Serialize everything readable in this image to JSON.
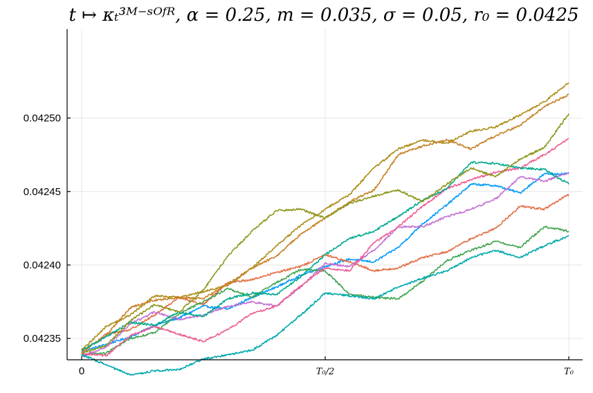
{
  "chart_data": {
    "type": "line",
    "title": "t ↦ κₜ³ᴹ⁻ˢᴼᶠᴿ, α = 0.25, m = 0.035, σ = 0.05, r₀ = 0.0425",
    "xlabel": "",
    "ylabel": "",
    "xlim": [
      0,
      1
    ],
    "ylim": [
      0.04232,
      0.04254
    ],
    "xticks": [
      {
        "value": 0,
        "label": "0"
      },
      {
        "value": 0.5,
        "label": "T₀/2"
      },
      {
        "value": 1,
        "label": "T₀"
      }
    ],
    "yticks": [
      {
        "value": 0.04235,
        "label": "0.04235"
      },
      {
        "value": 0.0424,
        "label": "0.04240"
      },
      {
        "value": 0.04245,
        "label": "0.04245"
      },
      {
        "value": 0.0425,
        "label": "0.04250"
      }
    ],
    "grid": true,
    "legend": "none",
    "series": [
      {
        "color": "#009AFA",
        "x": [
          0,
          0.05,
          0.1,
          0.15,
          0.2,
          0.25,
          0.3,
          0.35,
          0.4,
          0.45,
          0.5,
          0.55,
          0.6,
          0.65,
          0.7,
          0.75,
          0.8,
          0.85,
          0.9,
          0.95,
          1.0
        ],
        "y": [
          0.042341,
          0.042346,
          0.042351,
          0.042359,
          0.042364,
          0.042372,
          0.04237,
          0.042378,
          0.042385,
          0.042393,
          0.042399,
          0.042404,
          0.042402,
          0.042412,
          0.042428,
          0.042441,
          0.042455,
          0.042454,
          0.042449,
          0.042462,
          0.042462
        ]
      },
      {
        "color": "#E36F47",
        "x": [
          0,
          0.05,
          0.1,
          0.15,
          0.2,
          0.25,
          0.3,
          0.35,
          0.4,
          0.45,
          0.5,
          0.55,
          0.6,
          0.65,
          0.7,
          0.75,
          0.8,
          0.85,
          0.9,
          0.95,
          1.0
        ],
        "y": [
          0.04234,
          0.042353,
          0.042356,
          0.042366,
          0.042378,
          0.042373,
          0.042388,
          0.04239,
          0.042395,
          0.042399,
          0.042407,
          0.042402,
          0.042396,
          0.042398,
          0.042405,
          0.042409,
          0.042418,
          0.042425,
          0.04244,
          0.042438,
          0.042448
        ]
      },
      {
        "color": "#3EA44E",
        "x": [
          0,
          0.05,
          0.1,
          0.15,
          0.2,
          0.25,
          0.3,
          0.35,
          0.4,
          0.45,
          0.5,
          0.55,
          0.6,
          0.65,
          0.7,
          0.75,
          0.8,
          0.85,
          0.9,
          0.95,
          1.0
        ],
        "y": [
          0.042339,
          0.04234,
          0.04235,
          0.042354,
          0.042367,
          0.042375,
          0.042384,
          0.042378,
          0.042388,
          0.042397,
          0.042396,
          0.04238,
          0.042378,
          0.042377,
          0.042389,
          0.042403,
          0.04241,
          0.042416,
          0.042412,
          0.042426,
          0.042423
        ]
      },
      {
        "color": "#C271D2",
        "x": [
          0,
          0.05,
          0.1,
          0.15,
          0.2,
          0.25,
          0.3,
          0.35,
          0.4,
          0.45,
          0.5,
          0.55,
          0.6,
          0.65,
          0.7,
          0.75,
          0.8,
          0.85,
          0.9,
          0.95,
          1.0
        ],
        "y": [
          0.042338,
          0.042344,
          0.04236,
          0.042368,
          0.042363,
          0.042366,
          0.042372,
          0.042375,
          0.042372,
          0.042385,
          0.042401,
          0.042399,
          0.04241,
          0.042426,
          0.042426,
          0.042433,
          0.042438,
          0.042445,
          0.04246,
          0.042457,
          0.042463
        ]
      },
      {
        "color": "#AC8D18",
        "x": [
          0,
          0.05,
          0.1,
          0.15,
          0.2,
          0.25,
          0.3,
          0.35,
          0.4,
          0.45,
          0.5,
          0.55,
          0.6,
          0.65,
          0.7,
          0.75,
          0.8,
          0.85,
          0.9,
          0.95,
          1.0
        ],
        "y": [
          0.042342,
          0.042358,
          0.042366,
          0.042379,
          0.042378,
          0.042382,
          0.042386,
          0.042398,
          0.042413,
          0.042427,
          0.042438,
          0.042448,
          0.042466,
          0.042479,
          0.042485,
          0.042483,
          0.042491,
          0.042494,
          0.042502,
          0.042511,
          0.042524
        ]
      },
      {
        "color": "#00A9AD",
        "x": [
          0,
          0.05,
          0.1,
          0.15,
          0.2,
          0.25,
          0.3,
          0.35,
          0.4,
          0.45,
          0.5,
          0.55,
          0.6,
          0.65,
          0.7,
          0.75,
          0.8,
          0.85,
          0.9,
          0.95,
          1.0
        ],
        "y": [
          0.042339,
          0.042332,
          0.042325,
          0.042328,
          0.042329,
          0.042336,
          0.042339,
          0.042342,
          0.042352,
          0.042366,
          0.042381,
          0.042379,
          0.042377,
          0.042385,
          0.042391,
          0.042396,
          0.042405,
          0.04241,
          0.042405,
          0.042413,
          0.04242
        ]
      },
      {
        "color": "#ED5D92",
        "x": [
          0,
          0.05,
          0.1,
          0.15,
          0.2,
          0.25,
          0.3,
          0.35,
          0.4,
          0.45,
          0.5,
          0.55,
          0.6,
          0.65,
          0.7,
          0.75,
          0.8,
          0.85,
          0.9,
          0.95,
          1.0
        ],
        "y": [
          0.04234,
          0.042338,
          0.042352,
          0.042358,
          0.042353,
          0.042348,
          0.042356,
          0.042367,
          0.042372,
          0.042386,
          0.042398,
          0.042396,
          0.042415,
          0.042426,
          0.04244,
          0.042452,
          0.042458,
          0.042463,
          0.042466,
          0.042475,
          0.042486
        ]
      },
      {
        "color": "#C68125",
        "x": [
          0,
          0.05,
          0.1,
          0.15,
          0.2,
          0.25,
          0.3,
          0.35,
          0.4,
          0.45,
          0.5,
          0.55,
          0.6,
          0.65,
          0.7,
          0.75,
          0.8,
          0.85,
          0.9,
          0.95,
          1.0
        ],
        "y": [
          0.042341,
          0.042352,
          0.042371,
          0.042376,
          0.042378,
          0.042377,
          0.042387,
          0.042398,
          0.042406,
          0.042421,
          0.042432,
          0.042443,
          0.042451,
          0.042475,
          0.042481,
          0.042485,
          0.042479,
          0.042488,
          0.042495,
          0.042508,
          0.042516
        ]
      },
      {
        "color": "#00A98D",
        "x": [
          0,
          0.05,
          0.1,
          0.15,
          0.2,
          0.25,
          0.3,
          0.35,
          0.4,
          0.45,
          0.5,
          0.55,
          0.6,
          0.65,
          0.7,
          0.75,
          0.8,
          0.85,
          0.9,
          0.95,
          1.0
        ],
        "y": [
          0.042342,
          0.042351,
          0.042361,
          0.042359,
          0.042368,
          0.042365,
          0.042377,
          0.042381,
          0.04238,
          0.042392,
          0.042407,
          0.042418,
          0.042423,
          0.042433,
          0.042444,
          0.042452,
          0.04247,
          0.042469,
          0.042466,
          0.042465,
          0.042455
        ]
      },
      {
        "color": "#8E971D",
        "x": [
          0,
          0.05,
          0.1,
          0.15,
          0.2,
          0.25,
          0.3,
          0.35,
          0.4,
          0.45,
          0.5,
          0.55,
          0.6,
          0.65,
          0.7,
          0.75,
          0.8,
          0.85,
          0.9,
          0.95,
          1.0
        ],
        "y": [
          0.04234,
          0.042345,
          0.042362,
          0.042373,
          0.042368,
          0.042383,
          0.042406,
          0.042423,
          0.042437,
          0.042438,
          0.042432,
          0.042442,
          0.042447,
          0.042451,
          0.042443,
          0.042455,
          0.042466,
          0.04246,
          0.042472,
          0.04248,
          0.042503
        ]
      }
    ]
  }
}
